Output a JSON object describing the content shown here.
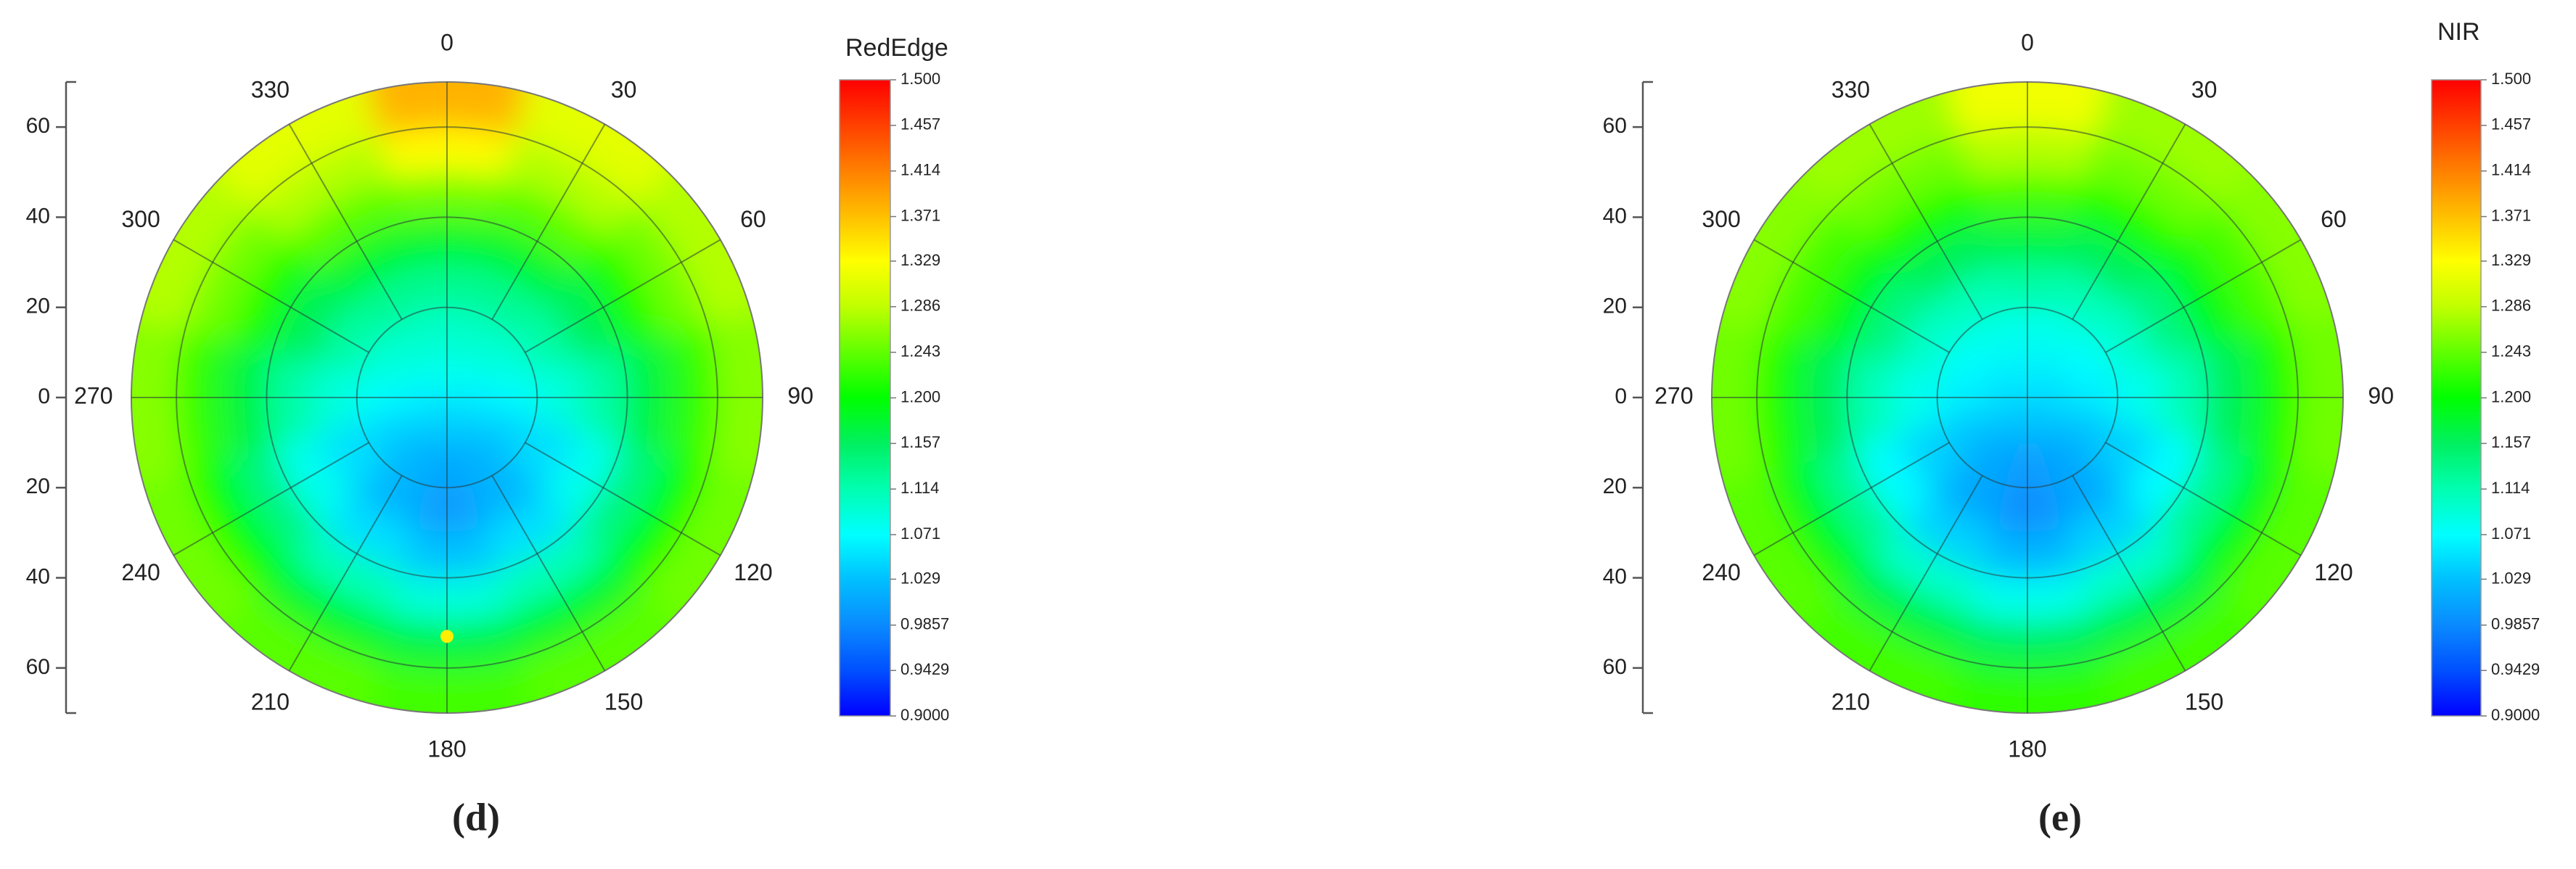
{
  "chart_data": [
    {
      "type": "polar_heatmap",
      "title": "RedEdge",
      "caption": "(d)",
      "thetaticks": [
        0,
        30,
        60,
        90,
        120,
        150,
        180,
        210,
        240,
        270,
        300,
        330
      ],
      "r_edges": [
        0,
        10,
        20,
        30,
        40,
        50,
        60,
        70
      ],
      "rgrid": [
        20,
        40,
        60
      ],
      "ylim": [
        -70,
        70
      ],
      "yticks": [
        60,
        40,
        20,
        0,
        {
          "value": -20,
          "label": "20"
        },
        {
          "value": -40,
          "label": "40"
        },
        {
          "value": -60,
          "label": "60"
        }
      ],
      "values": [
        [
          1.08,
          1.1,
          1.13,
          1.18,
          1.25,
          1.33,
          1.38
        ],
        [
          1.08,
          1.1,
          1.13,
          1.18,
          1.24,
          1.28,
          1.31
        ],
        [
          1.07,
          1.09,
          1.12,
          1.16,
          1.21,
          1.25,
          1.28
        ],
        [
          1.06,
          1.07,
          1.09,
          1.12,
          1.17,
          1.22,
          1.26
        ],
        [
          1.05,
          1.04,
          1.05,
          1.08,
          1.14,
          1.2,
          1.25
        ],
        [
          1.04,
          1.02,
          1.02,
          1.05,
          1.11,
          1.18,
          1.24
        ],
        [
          1.04,
          1.01,
          1.0,
          1.03,
          1.09,
          1.17,
          1.23
        ],
        [
          1.04,
          1.02,
          1.02,
          1.05,
          1.11,
          1.18,
          1.24
        ],
        [
          1.05,
          1.04,
          1.05,
          1.08,
          1.14,
          1.2,
          1.25
        ],
        [
          1.06,
          1.07,
          1.09,
          1.12,
          1.17,
          1.22,
          1.26
        ],
        [
          1.07,
          1.09,
          1.12,
          1.16,
          1.21,
          1.25,
          1.28
        ],
        [
          1.08,
          1.1,
          1.13,
          1.18,
          1.24,
          1.28,
          1.31
        ]
      ],
      "marker": {
        "theta": 180,
        "r": 53,
        "color": "#ffee00"
      },
      "colorbar": {
        "lim": [
          0.9,
          1.5
        ],
        "ticks": [
          {
            "value": 1.5,
            "label": "1.500"
          },
          1.457,
          1.414,
          1.371,
          1.329,
          1.286,
          1.243,
          {
            "value": 1.2,
            "label": "1.200"
          },
          1.157,
          1.114,
          1.071,
          1.029,
          0.9857,
          0.9429,
          {
            "value": 0.9,
            "label": "0.9000"
          }
        ],
        "colors": [
          "#ff0000",
          "#ff4000",
          "#ff8000",
          "#ffc000",
          "#ffff00",
          "#c0ff00",
          "#60ff00",
          "#00ff00",
          "#00f060",
          "#00ffb0",
          "#00ffff",
          "#00c0ff",
          "#0a8aff",
          "#0050ff",
          "#0000ff"
        ]
      }
    },
    {
      "type": "polar_heatmap",
      "title": "NIR",
      "caption": "(e)",
      "thetaticks": [
        0,
        30,
        60,
        90,
        120,
        150,
        180,
        210,
        240,
        270,
        300,
        330
      ],
      "r_edges": [
        0,
        10,
        20,
        30,
        40,
        50,
        60,
        70
      ],
      "rgrid": [
        20,
        40,
        60
      ],
      "ylim": [
        -70,
        70
      ],
      "yticks": [
        60,
        40,
        20,
        0,
        {
          "value": -20,
          "label": "20"
        },
        {
          "value": -40,
          "label": "40"
        },
        {
          "value": -60,
          "label": "60"
        }
      ],
      "values": [
        [
          1.06,
          1.08,
          1.12,
          1.17,
          1.23,
          1.28,
          1.32
        ],
        [
          1.06,
          1.08,
          1.11,
          1.16,
          1.21,
          1.25,
          1.27
        ],
        [
          1.05,
          1.07,
          1.1,
          1.14,
          1.19,
          1.23,
          1.26
        ],
        [
          1.05,
          1.06,
          1.08,
          1.11,
          1.16,
          1.21,
          1.25
        ],
        [
          1.04,
          1.03,
          1.04,
          1.07,
          1.13,
          1.19,
          1.24
        ],
        [
          1.03,
          1.01,
          1.01,
          1.04,
          1.1,
          1.17,
          1.23
        ],
        [
          1.03,
          1.0,
          0.99,
          1.02,
          1.08,
          1.16,
          1.22
        ],
        [
          1.03,
          1.01,
          1.01,
          1.04,
          1.1,
          1.17,
          1.23
        ],
        [
          1.04,
          1.03,
          1.04,
          1.07,
          1.13,
          1.19,
          1.24
        ],
        [
          1.05,
          1.06,
          1.08,
          1.11,
          1.16,
          1.21,
          1.25
        ],
        [
          1.05,
          1.07,
          1.1,
          1.14,
          1.19,
          1.23,
          1.26
        ],
        [
          1.06,
          1.08,
          1.11,
          1.16,
          1.21,
          1.25,
          1.27
        ]
      ],
      "colorbar": {
        "lim": [
          0.9,
          1.5
        ],
        "ticks": [
          {
            "value": 1.5,
            "label": "1.500"
          },
          1.457,
          1.414,
          1.371,
          1.329,
          1.286,
          1.243,
          {
            "value": 1.2,
            "label": "1.200"
          },
          1.157,
          1.114,
          1.071,
          1.029,
          0.9857,
          0.9429,
          {
            "value": 0.9,
            "label": "0.9000"
          }
        ],
        "colors": [
          "#ff0000",
          "#ff4000",
          "#ff8000",
          "#ffc000",
          "#ffff00",
          "#c0ff00",
          "#60ff00",
          "#00ff00",
          "#00f060",
          "#00ffb0",
          "#00ffff",
          "#00c0ff",
          "#0a8aff",
          "#0050ff",
          "#0000ff"
        ]
      }
    }
  ]
}
